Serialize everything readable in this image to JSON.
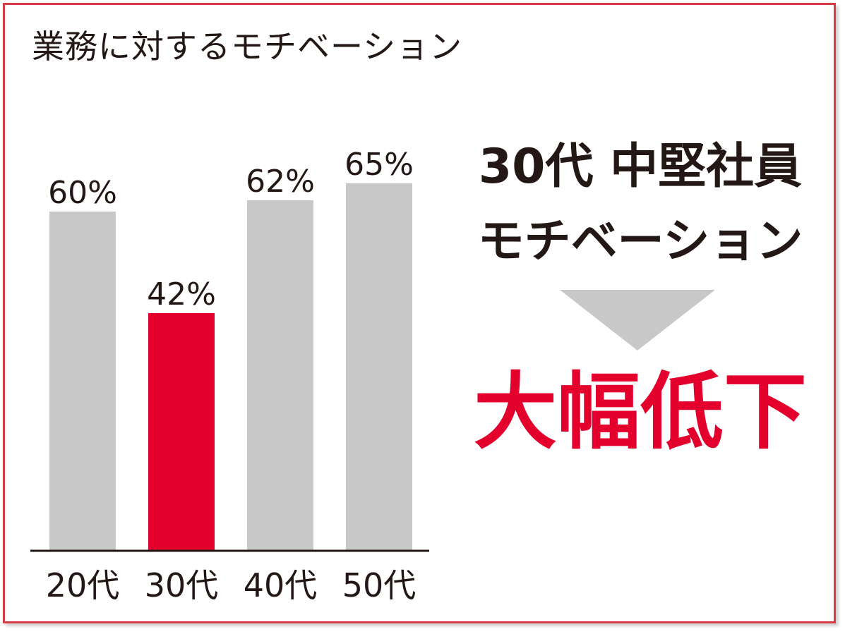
{
  "chart_data": {
    "type": "bar",
    "title": "業務に対するモチベーション",
    "categories": [
      "20代",
      "30代",
      "40代",
      "50代"
    ],
    "values": [
      60,
      42,
      62,
      65
    ],
    "value_labels": [
      "60%",
      "42%",
      "62%",
      "65%"
    ],
    "highlight_index": 1,
    "bar_color": "#c8c8c9",
    "highlight_color": "#e3002d",
    "ylim": [
      0,
      100
    ],
    "xlabel": "",
    "ylabel": "",
    "grid": false
  },
  "callout": {
    "line1": "30代 中堅社員",
    "line2": "モチベーション",
    "arrow_icon": "down-triangle-icon",
    "conclusion": "大幅低下"
  },
  "colors": {
    "frame_border": "#d63a45",
    "text": "#231815",
    "accent": "#e3002d"
  }
}
